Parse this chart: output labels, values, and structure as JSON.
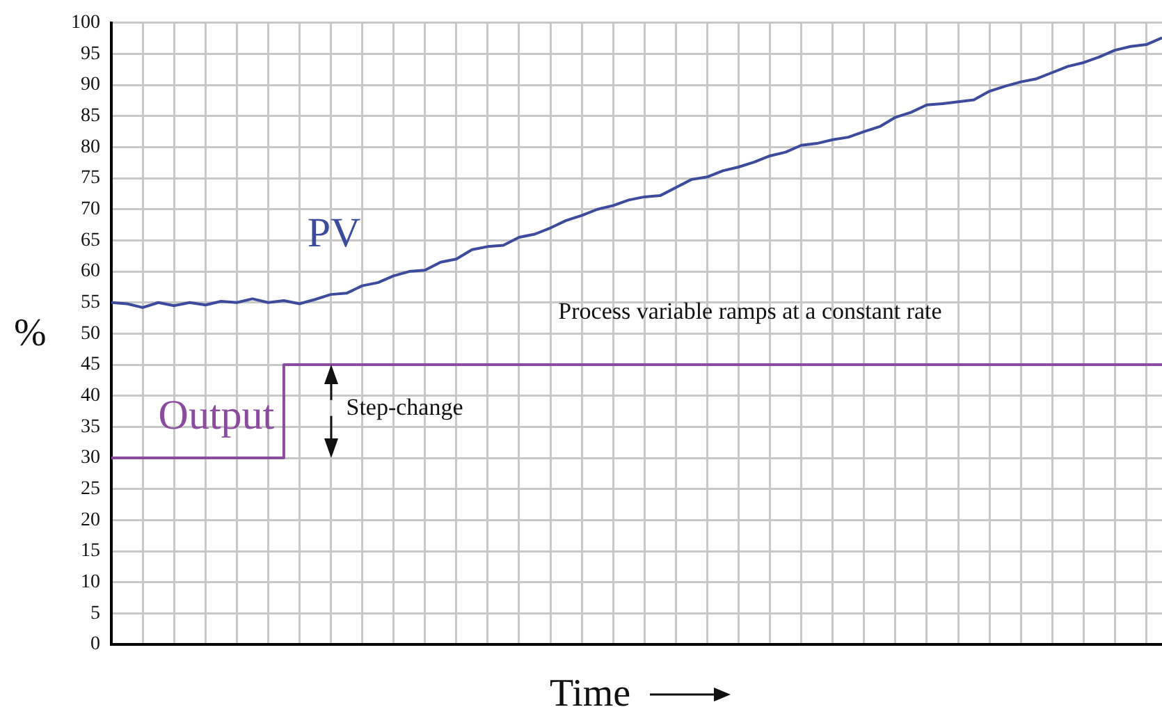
{
  "chart_data": {
    "type": "line",
    "xlabel": "Time",
    "ylabel": "%",
    "categories": [
      null,
      null,
      null,
      null,
      null,
      null,
      null,
      null,
      null,
      null,
      null,
      null,
      null,
      null,
      null,
      null,
      null,
      null,
      null,
      null,
      null,
      null,
      null,
      null,
      null,
      null,
      null,
      null,
      null,
      null,
      null,
      null,
      null,
      null,
      null,
      null,
      null,
      null,
      null,
      null,
      null,
      null,
      null,
      null,
      null,
      null,
      null,
      null,
      null,
      null,
      null,
      null,
      null,
      null,
      null,
      null,
      null,
      null,
      null,
      null,
      null,
      null,
      null,
      null,
      null,
      null,
      null,
      null
    ],
    "series": [
      {
        "name": "PV",
        "color": "#3d4b9c",
        "values": [
          55,
          54.8,
          54.2,
          55,
          54.5,
          55,
          54.6,
          55.2,
          55,
          55.6,
          55,
          55.3,
          54.8,
          55.5,
          56.3,
          56.5,
          57.7,
          58.2,
          59.3,
          60,
          60.2,
          61.5,
          62,
          63.5,
          64,
          64.2,
          65.5,
          66,
          67,
          68.2,
          69,
          70,
          70.6,
          71.5,
          72,
          72.2,
          73.5,
          74.8,
          75.2,
          76.2,
          76.8,
          77.6,
          78.6,
          79.2,
          80.3,
          80.6,
          81.2,
          81.6,
          82.5,
          83.3,
          84.8,
          85.6,
          86.8,
          87,
          87.3,
          87.6,
          89,
          89.8,
          90.5,
          91,
          92,
          93,
          93.6,
          94.5,
          95.6,
          96.2,
          96.5,
          97.6
        ]
      },
      {
        "name": "Output",
        "type": "step",
        "color": "#8b4c9e",
        "values": [
          30,
          30,
          30,
          30,
          30,
          30,
          30,
          30,
          30,
          30,
          30,
          30,
          45,
          45,
          45,
          45,
          45,
          45,
          45,
          45,
          45,
          45,
          45,
          45,
          45,
          45,
          45,
          45,
          45,
          45,
          45,
          45,
          45,
          45,
          45,
          45,
          45,
          45,
          45,
          45,
          45,
          45,
          45,
          45,
          45,
          45,
          45,
          45,
          45,
          45,
          45,
          45,
          45,
          45,
          45,
          45,
          45,
          45,
          45,
          45,
          45,
          45,
          45,
          45,
          45,
          45,
          45,
          45
        ]
      }
    ],
    "ylim": [
      0,
      100
    ],
    "yticks": [
      0,
      5,
      10,
      15,
      20,
      25,
      30,
      35,
      40,
      45,
      50,
      55,
      60,
      65,
      70,
      75,
      80,
      85,
      90,
      95,
      100
    ],
    "grid": true,
    "legend": false,
    "marker": "none",
    "line_style": "solid",
    "tick_labels": "y",
    "annotations": [
      "Process variable ramps at a constant rate",
      "Step-change"
    ]
  }
}
